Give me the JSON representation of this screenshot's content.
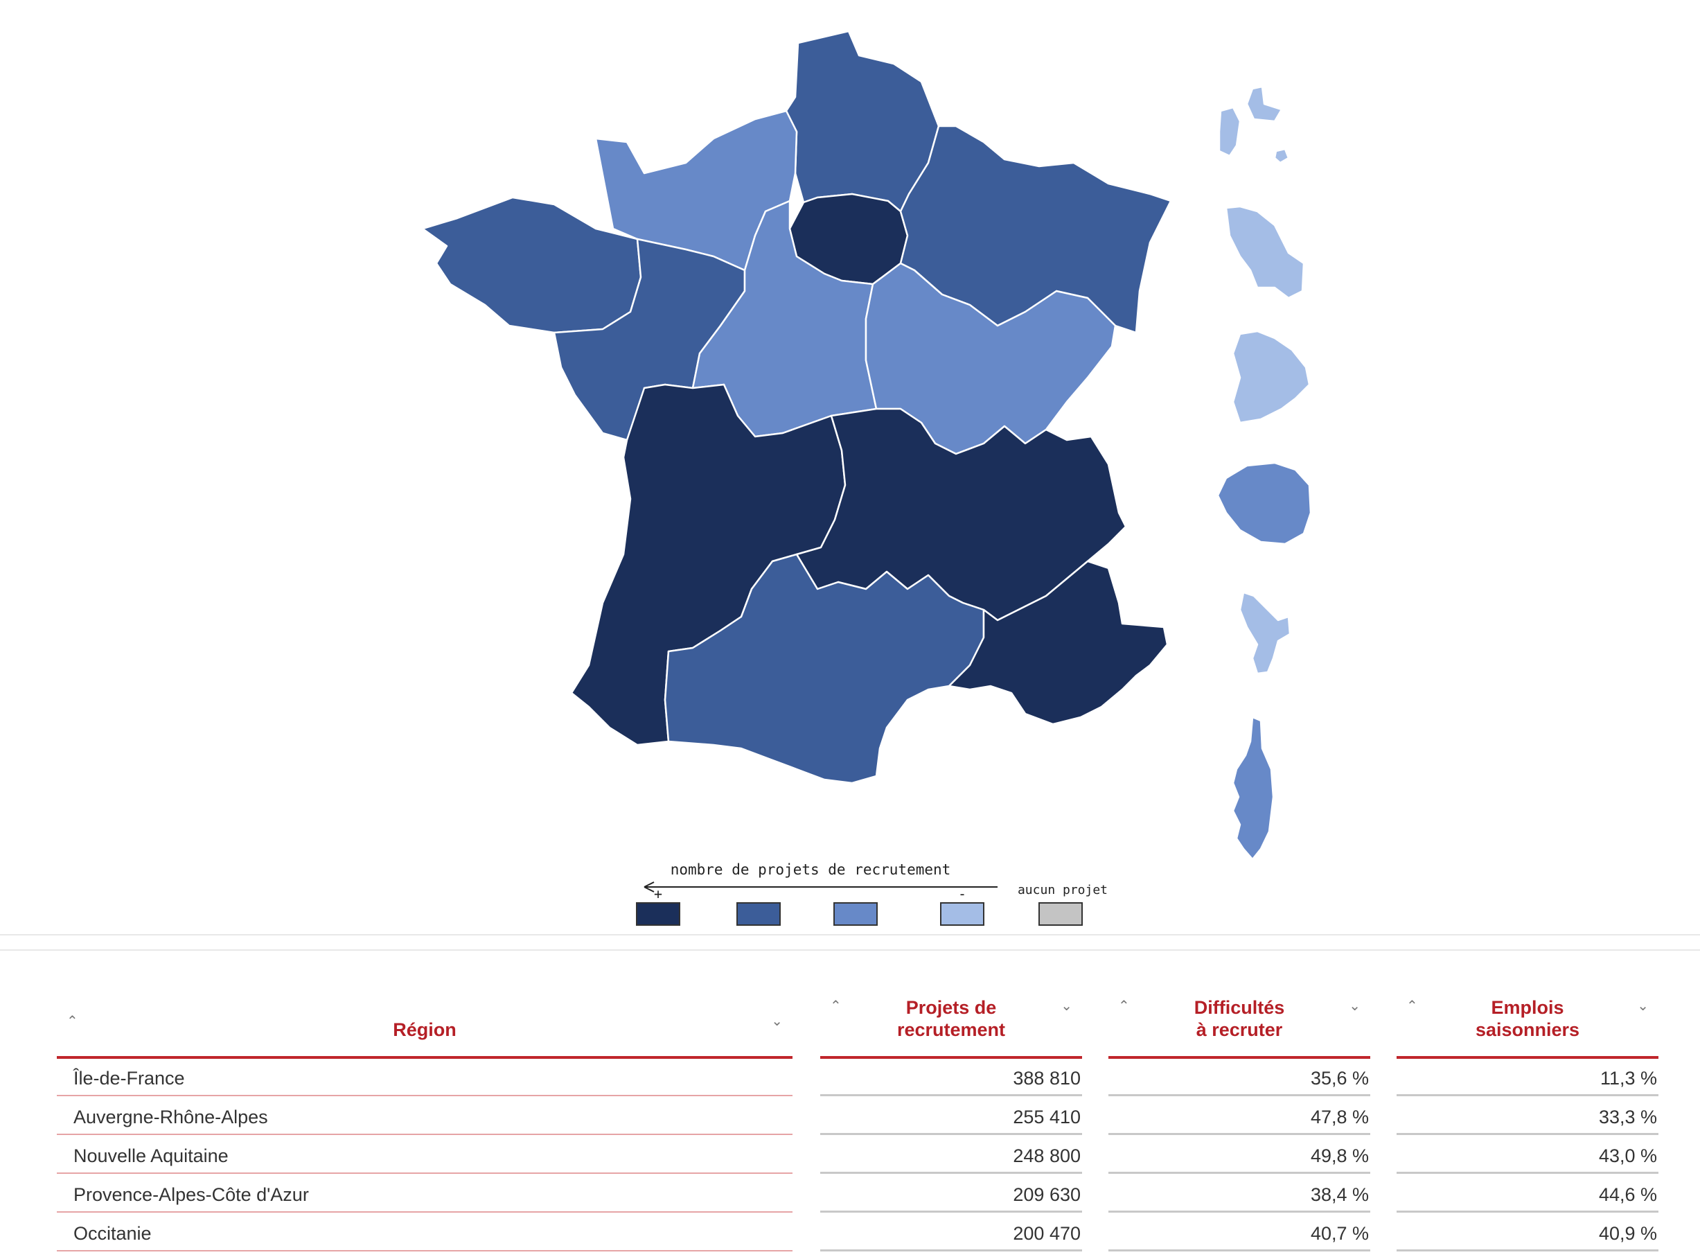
{
  "map": {
    "legend": {
      "title": "nombre de projets de recrutement",
      "plus_label": "+",
      "minus_label": "-",
      "none_label": "aucun projet",
      "swatches": [
        "#1b2f5a",
        "#3c5d99",
        "#6789c8",
        "#a4bde6",
        "#c4c4c4"
      ]
    },
    "regions": [
      {
        "name": "Hauts-de-France",
        "color": "#3c5d99"
      },
      {
        "name": "Normandie",
        "color": "#6789c8"
      },
      {
        "name": "Bretagne",
        "color": "#3c5d99"
      },
      {
        "name": "Île-de-France",
        "color": "#1b2f5a"
      },
      {
        "name": "Grand Est",
        "color": "#3c5d99"
      },
      {
        "name": "Pays de la Loire",
        "color": "#3c5d99"
      },
      {
        "name": "Centre-Val de Loire",
        "color": "#6789c8"
      },
      {
        "name": "Bourgogne-Franche-Comté",
        "color": "#6789c8"
      },
      {
        "name": "Nouvelle Aquitaine",
        "color": "#1b2f5a"
      },
      {
        "name": "Auvergne-Rhône-Alpes",
        "color": "#1b2f5a"
      },
      {
        "name": "Occitanie",
        "color": "#3c5d99"
      },
      {
        "name": "Provence-Alpes-Côte d'Azur",
        "color": "#1b2f5a"
      },
      {
        "name": "Guadeloupe",
        "color": "#a4bde6"
      },
      {
        "name": "Martinique",
        "color": "#a4bde6"
      },
      {
        "name": "Guyane",
        "color": "#a4bde6"
      },
      {
        "name": "La Réunion",
        "color": "#6789c8"
      },
      {
        "name": "Mayotte",
        "color": "#a4bde6"
      },
      {
        "name": "Corse",
        "color": "#6789c8"
      }
    ]
  },
  "table": {
    "columns": [
      "Région",
      "Projets de\nrecrutement",
      "Difficultés\nà recruter",
      "Emplois\nsaisonniers"
    ],
    "sort_up_icon": "⌃",
    "sort_down_icon": "⌄",
    "rows": [
      {
        "region": "Île-de-France",
        "projets": "388 810",
        "difficultes": "35,6 %",
        "saisonniers": "11,3 %"
      },
      {
        "region": "Auvergne-Rhône-Alpes",
        "projets": "255 410",
        "difficultes": "47,8 %",
        "saisonniers": "33,3 %"
      },
      {
        "region": "Nouvelle Aquitaine",
        "projets": "248 800",
        "difficultes": "49,8 %",
        "saisonniers": "43,0 %"
      },
      {
        "region": "Provence-Alpes-Côte d'Azur",
        "projets": "209 630",
        "difficultes": "38,4 %",
        "saisonniers": "44,6 %"
      },
      {
        "region": "Occitanie",
        "projets": "200 470",
        "difficultes": "40,7 %",
        "saisonniers": "40,9 %"
      }
    ]
  }
}
